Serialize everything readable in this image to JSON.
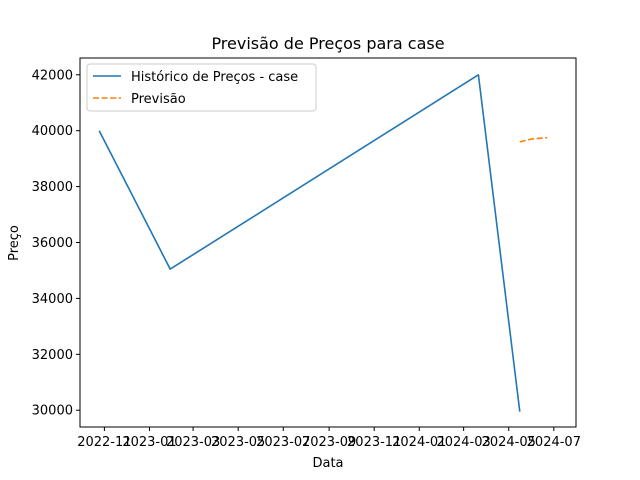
{
  "chart_data": {
    "type": "line",
    "title": "Previsão de Preços para case",
    "xlabel": "Data",
    "ylabel": "Preço",
    "xlim": [
      "2022-09-29",
      "2024-07-31"
    ],
    "ylim": [
      29400,
      42600
    ],
    "x_ticks": [
      {
        "date": "2022-11-01",
        "label": "2022-11"
      },
      {
        "date": "2023-01-01",
        "label": "2023-01"
      },
      {
        "date": "2023-03-01",
        "label": "2023-03"
      },
      {
        "date": "2023-05-01",
        "label": "2023-05"
      },
      {
        "date": "2023-07-01",
        "label": "2023-07"
      },
      {
        "date": "2023-09-01",
        "label": "2023-09"
      },
      {
        "date": "2023-11-01",
        "label": "2023-11"
      },
      {
        "date": "2024-01-01",
        "label": "2024-01"
      },
      {
        "date": "2024-03-01",
        "label": "2024-03"
      },
      {
        "date": "2024-05-01",
        "label": "2024-05"
      },
      {
        "date": "2024-07-01",
        "label": "2024-07"
      }
    ],
    "y_ticks": [
      30000,
      32000,
      34000,
      36000,
      38000,
      40000,
      42000
    ],
    "grid": false,
    "legend": "top-left",
    "series": [
      {
        "name": "Histórico de Preços - case",
        "color": "#1f77b4",
        "dash": "solid",
        "points": [
          {
            "x": "2022-10-25",
            "y": 40000
          },
          {
            "x": "2023-01-29",
            "y": 35050
          },
          {
            "x": "2024-03-21",
            "y": 42000
          },
          {
            "x": "2024-05-16",
            "y": 29950
          }
        ]
      },
      {
        "name": "Previsão",
        "color": "#ff7f0e",
        "dash": "dashed",
        "points": [
          {
            "x": "2024-05-16",
            "y": 39600
          },
          {
            "x": "2024-05-31",
            "y": 39700
          },
          {
            "x": "2024-06-22",
            "y": 39750
          }
        ]
      }
    ]
  }
}
